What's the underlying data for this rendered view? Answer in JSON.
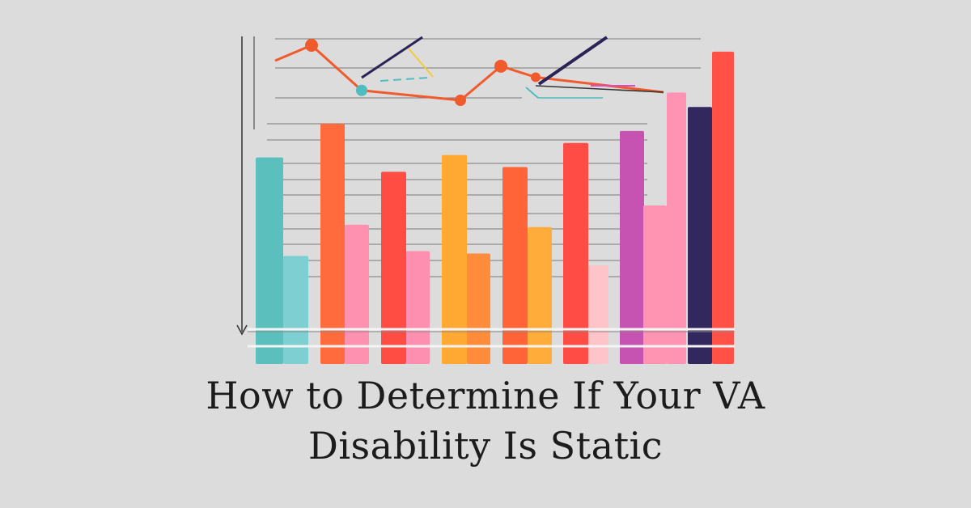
{
  "title": {
    "line1": "How to Determine If Your VA",
    "line2": "Disability Is Static"
  },
  "illustration": {
    "bars": [
      {
        "value": 0.86,
        "color": "#5bbfbd"
      },
      {
        "value": 0.45,
        "color": "#7dcfd1"
      },
      {
        "value": 1.0,
        "color": "#ff6b3d"
      },
      {
        "value": 0.58,
        "color": "#ff91b0"
      },
      {
        "value": 0.8,
        "color": "#ff4d44"
      },
      {
        "value": 0.47,
        "color": "#ff8fb0"
      },
      {
        "value": 0.87,
        "color": "#ffa933"
      },
      {
        "value": 0.46,
        "color": "#ff8c3a"
      },
      {
        "value": 0.82,
        "color": "#ff6439"
      },
      {
        "value": 0.57,
        "color": "#ffac3a"
      },
      {
        "value": 0.92,
        "color": "#ff4c44"
      },
      {
        "value": 0.41,
        "color": "#ffc4c8"
      },
      {
        "value": 0.97,
        "color": "#c653b2"
      },
      {
        "value": 0.66,
        "color": "#ff93b2"
      },
      {
        "value": 1.13,
        "color": "#ff93b4"
      },
      {
        "value": 1.07,
        "color": "#33285e"
      },
      {
        "value": 1.3,
        "color": "#ff5146"
      }
    ],
    "line_points": [
      0.72,
      1.0,
      0.18,
      0.0,
      0.62,
      0.42
    ],
    "colors": {
      "background": "#dcdcdc",
      "axis": "#333333",
      "grid": "#5a5a5a",
      "line_orange": "#f05a2c",
      "line_navy": "#2a2355",
      "point_teal": "#4fbcc0",
      "accent_yellow": "#f5c93c",
      "accent_magenta": "#d44fc2"
    }
  }
}
